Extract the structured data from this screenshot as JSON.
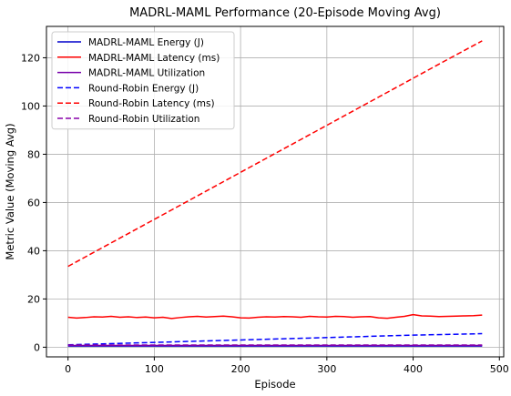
{
  "chart_data": {
    "type": "line",
    "title": "MADRL-MAML Performance (20-Episode Moving Avg)",
    "xlabel": "Episode",
    "ylabel": "Metric Value (Moving Avg)",
    "xlim": [
      -25,
      505
    ],
    "ylim": [
      -4,
      133
    ],
    "xticks": [
      0,
      100,
      200,
      300,
      400,
      500
    ],
    "yticks": [
      0,
      20,
      40,
      60,
      80,
      100,
      120
    ],
    "grid": true,
    "legend_position": "top-left",
    "series": [
      {
        "name": "MADRL-MAML Energy (J)",
        "color": "#0000cc",
        "style": "solid",
        "x": [
          0,
          40,
          80,
          120,
          160,
          200,
          240,
          280,
          320,
          360,
          400,
          440,
          480
        ],
        "y": [
          0.5,
          0.5,
          0.5,
          0.5,
          0.5,
          0.5,
          0.5,
          0.5,
          0.5,
          0.5,
          0.5,
          0.5,
          0.5
        ]
      },
      {
        "name": "MADRL-MAML Latency (ms)",
        "color": "#ff0000",
        "style": "solid",
        "x": [
          0,
          10,
          20,
          30,
          40,
          50,
          60,
          70,
          80,
          90,
          100,
          110,
          120,
          130,
          140,
          150,
          160,
          170,
          180,
          190,
          200,
          210,
          220,
          230,
          240,
          250,
          260,
          270,
          280,
          290,
          300,
          310,
          320,
          330,
          340,
          350,
          360,
          370,
          380,
          390,
          400,
          410,
          420,
          430,
          440,
          450,
          460,
          470,
          480
        ],
        "y": [
          12.4,
          12.1,
          12.3,
          12.6,
          12.5,
          12.8,
          12.4,
          12.6,
          12.3,
          12.5,
          12.2,
          12.4,
          11.9,
          12.3,
          12.6,
          12.8,
          12.5,
          12.7,
          12.9,
          12.6,
          12.2,
          12.1,
          12.4,
          12.6,
          12.5,
          12.7,
          12.6,
          12.4,
          12.8,
          12.6,
          12.5,
          12.8,
          12.7,
          12.4,
          12.6,
          12.7,
          12.2,
          12.0,
          12.4,
          12.8,
          13.5,
          13.0,
          12.9,
          12.7,
          12.8,
          12.9,
          13.0,
          13.1,
          13.3
        ]
      },
      {
        "name": "MADRL-MAML Utilization",
        "color": "#7700aa",
        "style": "solid",
        "x": [
          0,
          40,
          80,
          120,
          160,
          200,
          240,
          280,
          320,
          360,
          400,
          440,
          480
        ],
        "y": [
          0.7,
          0.7,
          0.7,
          0.7,
          0.7,
          0.7,
          0.7,
          0.7,
          0.7,
          0.7,
          0.7,
          0.7,
          0.7
        ]
      },
      {
        "name": "Round-Robin Energy (J)",
        "color": "#0000ff",
        "style": "dashed",
        "x": [
          0,
          40,
          80,
          120,
          160,
          200,
          240,
          280,
          320,
          360,
          400,
          440,
          480
        ],
        "y": [
          1.0,
          1.4,
          1.8,
          2.2,
          2.6,
          3.0,
          3.4,
          3.8,
          4.2,
          4.6,
          5.0,
          5.3,
          5.6
        ]
      },
      {
        "name": "Round-Robin Latency (ms)",
        "color": "#ff0000",
        "style": "dashed",
        "x": [
          0,
          40,
          80,
          120,
          160,
          200,
          240,
          280,
          320,
          360,
          400,
          440,
          480
        ],
        "y": [
          33.5,
          41.3,
          49.1,
          56.9,
          64.7,
          72.5,
          80.3,
          88.1,
          95.9,
          103.7,
          111.5,
          119.3,
          127.0
        ]
      },
      {
        "name": "Round-Robin Utilization",
        "color": "#8800aa",
        "style": "dashed",
        "x": [
          0,
          40,
          80,
          120,
          160,
          200,
          240,
          280,
          320,
          360,
          400,
          440,
          480
        ],
        "y": [
          0.9,
          0.9,
          0.9,
          0.9,
          0.9,
          0.9,
          0.9,
          0.9,
          0.9,
          0.9,
          0.9,
          0.9,
          0.9
        ]
      }
    ]
  }
}
